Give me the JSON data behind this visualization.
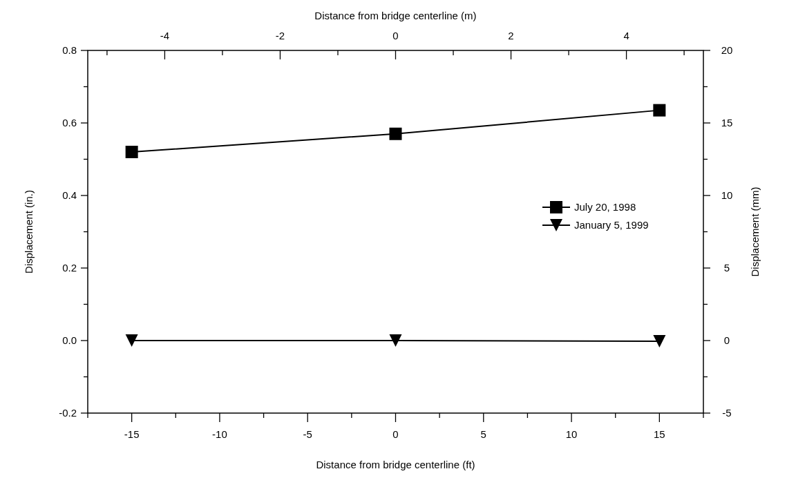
{
  "chart_data": {
    "type": "line",
    "xlabel": "Distance from bridge centerline (ft)",
    "x2label": "Distance from bridge centerline (m)",
    "ylabel": "Displacement (in.)",
    "y2label": "Displacement (mm)",
    "xlim": [
      -17.5,
      17.5
    ],
    "xticks": [
      {
        "value": -17.5,
        "label": null
      },
      -15,
      {
        "value": -12.5,
        "label": null
      },
      -10,
      {
        "value": -7.5,
        "label": null
      },
      -5,
      {
        "value": -2.5,
        "label": null
      },
      0,
      {
        "value": 2.5,
        "label": null
      },
      5,
      {
        "value": 7.5,
        "label": null
      },
      10,
      {
        "value": 12.5,
        "label": null
      },
      15,
      {
        "value": 17.5,
        "label": null
      }
    ],
    "x2lim": [
      -5.334,
      5.334
    ],
    "x2ticks": [
      {
        "value": -5,
        "label": null
      },
      -4,
      {
        "value": -3,
        "label": null
      },
      -2,
      {
        "value": -1,
        "label": null
      },
      0,
      {
        "value": 1,
        "label": null
      },
      2,
      {
        "value": 3,
        "label": null
      },
      4,
      {
        "value": 5,
        "label": null
      }
    ],
    "ylim": [
      -0.2,
      0.8
    ],
    "yticks": [
      -0.2,
      {
        "value": -0.1,
        "label": null
      },
      {
        "value": 0,
        "label": "0.0"
      },
      {
        "value": 0.1,
        "label": null
      },
      0.2,
      {
        "value": 0.3,
        "label": null
      },
      0.4,
      {
        "value": 0.5,
        "label": null
      },
      0.6,
      {
        "value": 0.7,
        "label": null
      },
      0.8
    ],
    "y2lim": [
      -5,
      20
    ],
    "y2ticks": [
      -5,
      {
        "value": -2.5,
        "label": null
      },
      0,
      {
        "value": 2.5,
        "label": null
      },
      5,
      {
        "value": 7.5,
        "label": null
      },
      10,
      {
        "value": 12.5,
        "label": null
      },
      15,
      {
        "value": 17.5,
        "label": null
      },
      20
    ],
    "x": [
      -15,
      0,
      15
    ],
    "grid": false,
    "legend": "right",
    "line_style": "solid",
    "series": [
      {
        "name": "July 20, 1998",
        "color": "#000000",
        "marker": "square",
        "values": [
          0.52,
          0.57,
          0.635
        ]
      },
      {
        "name": "January 5, 1999",
        "color": "#000000",
        "marker": "triangle",
        "values": [
          0.0,
          0.0,
          -0.002
        ]
      }
    ]
  }
}
